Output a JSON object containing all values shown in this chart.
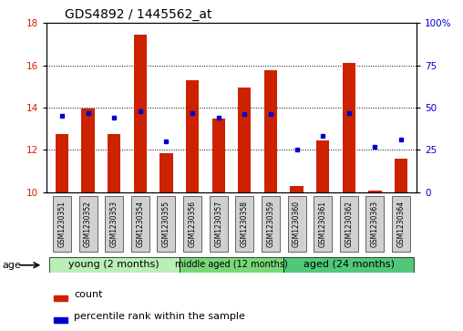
{
  "title": "GDS4892 / 1445562_at",
  "samples": [
    "GSM1230351",
    "GSM1230352",
    "GSM1230353",
    "GSM1230354",
    "GSM1230355",
    "GSM1230356",
    "GSM1230357",
    "GSM1230358",
    "GSM1230359",
    "GSM1230360",
    "GSM1230361",
    "GSM1230362",
    "GSM1230363",
    "GSM1230364"
  ],
  "count_values": [
    12.75,
    13.95,
    12.75,
    17.45,
    11.85,
    15.3,
    13.5,
    14.95,
    15.75,
    10.3,
    12.45,
    16.1,
    10.05,
    11.6
  ],
  "percentile_values": [
    45,
    47,
    44,
    48,
    30,
    47,
    44,
    46,
    46,
    25,
    33,
    47,
    27,
    31
  ],
  "groups": [
    {
      "label": "young (2 months)",
      "start": 0,
      "end": 5
    },
    {
      "label": "middle aged (12 months)",
      "start": 5,
      "end": 9
    },
    {
      "label": "aged (24 months)",
      "start": 9,
      "end": 14
    }
  ],
  "group_colors": [
    "#b8f0b8",
    "#78d878",
    "#50c878"
  ],
  "ylim_left": [
    10,
    18
  ],
  "ylim_right": [
    0,
    100
  ],
  "yticks_left": [
    10,
    12,
    14,
    16,
    18
  ],
  "yticks_right": [
    0,
    25,
    50,
    75,
    100
  ],
  "bar_color": "#cc2200",
  "dot_color": "#0000cc",
  "bar_bottom": 10,
  "bg_color": "#ffffff",
  "grid_color": "#000000",
  "tick_label_color_left": "#cc2200",
  "tick_label_color_right": "#0000cc",
  "age_label": "age",
  "legend_count": "count",
  "legend_percentile": "percentile rank within the sample",
  "bar_width": 0.5,
  "sample_box_color": "#d0d0d0"
}
